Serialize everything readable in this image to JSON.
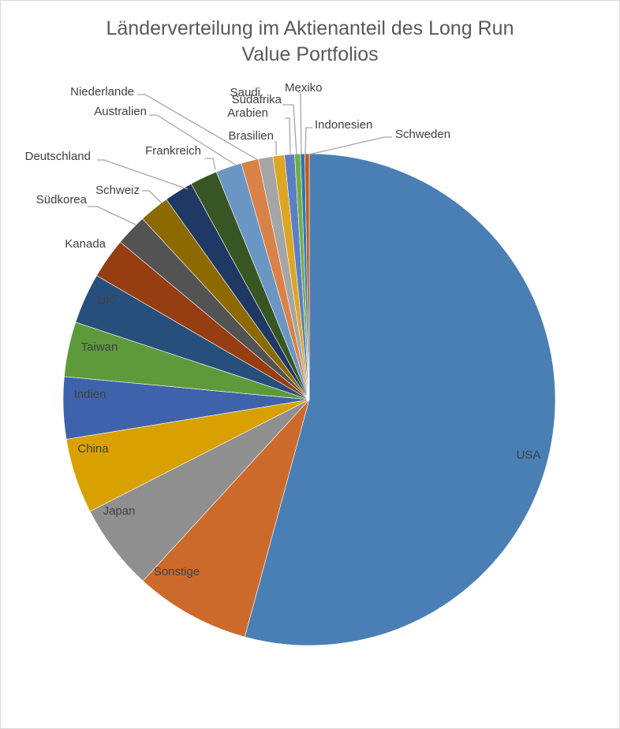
{
  "chart_data": {
    "type": "pie",
    "title_lines": [
      "Länderverteilung im Aktienanteil des Long Run",
      "Value Portfolios"
    ],
    "start_angle_deg": 0,
    "direction": "clockwise",
    "slices": [
      {
        "name": "USA",
        "value": 57.2,
        "color": "#4a7fb5"
      },
      {
        "name": "Sonstige",
        "value": 8.0,
        "color": "#cc6a2b"
      },
      {
        "name": "Japan",
        "value": 6.0,
        "color": "#8f8f8f"
      },
      {
        "name": "China",
        "value": 5.2,
        "color": "#d8a000"
      },
      {
        "name": "Indien",
        "value": 4.3,
        "color": "#3f63ab"
      },
      {
        "name": "Taiwan",
        "value": 3.8,
        "color": "#5d9a3c"
      },
      {
        "name": "UK",
        "value": 3.5,
        "color": "#264f7b"
      },
      {
        "name": "Kanada",
        "value": 2.8,
        "color": "#973d12"
      },
      {
        "name": "Südkorea",
        "value": 2.2,
        "color": "#535353"
      },
      {
        "name": "Schweiz",
        "value": 2.1,
        "color": "#8d6a00"
      },
      {
        "name": "Deutschland",
        "value": 2.0,
        "color": "#1f3864"
      },
      {
        "name": "Frankreich",
        "value": 1.9,
        "color": "#375623"
      },
      {
        "name": "Australien",
        "value": 1.8,
        "color": "#6b96c4"
      },
      {
        "name": "Niederlande",
        "value": 1.2,
        "color": "#d98248"
      },
      {
        "name": "Brasilien",
        "value": 1.0,
        "color": "#a5a5a5"
      },
      {
        "name": "Saudi-Arabien",
        "value": 0.8,
        "color": "#dca622"
      },
      {
        "name": "Südafrika",
        "value": 0.7,
        "color": "#5c7fc4"
      },
      {
        "name": "Mexiko",
        "value": 0.4,
        "color": "#70ad47"
      },
      {
        "name": "Indonesien",
        "value": 0.3,
        "color": "#2e75b6"
      },
      {
        "name": "Schweden",
        "value": 0.3,
        "color": "#c55a11"
      }
    ],
    "data_labels": [
      {
        "text": "USA"
      },
      {
        "text": "Sonstige"
      },
      {
        "text": "Japan"
      },
      {
        "text": "China"
      },
      {
        "text": "Indien"
      },
      {
        "text": "Taiwan"
      },
      {
        "text": "UK"
      },
      {
        "text": "Kanada"
      },
      {
        "text": "Südkorea"
      },
      {
        "text": "Schweiz"
      },
      {
        "text": "Deutschland"
      },
      {
        "text": "Frankreich"
      },
      {
        "text": "Australien"
      },
      {
        "text": "Niederlande"
      },
      {
        "text": "Brasilien"
      },
      {
        "text": "Saudi"
      },
      {
        "text": "Arabien"
      },
      {
        "text": "Südafrika"
      },
      {
        "text": "Mexiko"
      },
      {
        "text": "Indonesien"
      },
      {
        "text": "Schweden"
      }
    ]
  }
}
